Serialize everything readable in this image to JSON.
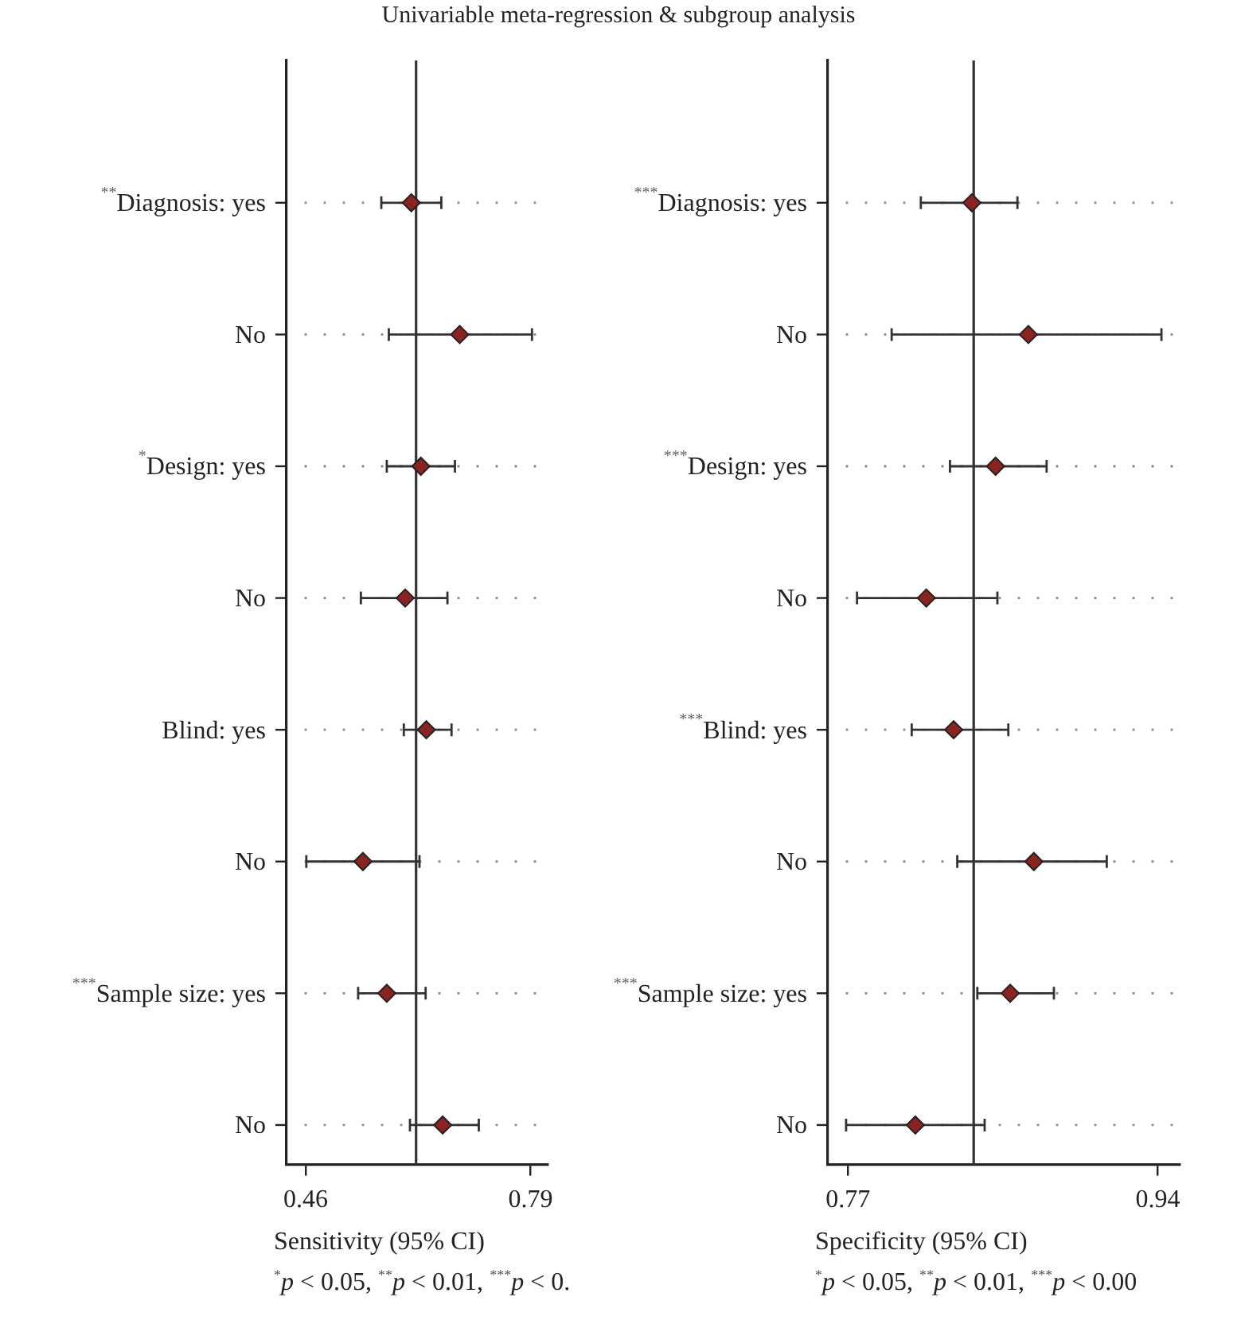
{
  "chart_data": [
    {
      "type": "scatter",
      "title": "Univariable meta-regression & subgroup analysis",
      "xlabel": "Sensitivity (95% CI)",
      "annotations": [
        "$^{*}$p < 0.05, $^{**}$p < 0.01, $^{***}$p < 0."
      ],
      "orientation": "horizontal",
      "marker": "diamond",
      "grid": "y",
      "color": "#8b2323",
      "categories": [
        "$^{**}$Diagnosis: yes",
        "No",
        "$^{*}$Design: yes",
        "No",
        "Blind: yes",
        "No",
        "$^{***}$Sample size: yes",
        "No"
      ],
      "values": [
        0.615,
        0.686,
        0.629,
        0.606,
        0.637,
        0.544,
        0.579,
        0.661
      ],
      "errors": [
        [
          0.571,
          0.659
        ],
        [
          0.582,
          0.792
        ],
        [
          0.579,
          0.679
        ],
        [
          0.541,
          0.668
        ],
        [
          0.604,
          0.674
        ],
        [
          0.461,
          0.627
        ],
        [
          0.537,
          0.636
        ],
        [
          0.613,
          0.714
        ]
      ],
      "xlim": [
        0.432,
        0.815
      ],
      "xticks": [
        0.46,
        0.79
      ],
      "ref_lines": [
        {
          "axis": "x",
          "value": 0.622
        }
      ]
    },
    {
      "type": "scatter",
      "xlabel": "Specificity (95% CI)",
      "annotations": [
        "$^{*}$p < 0.05, $^{**}$p < 0.01, $^{***}$p < 0.00"
      ],
      "orientation": "horizontal",
      "marker": "diamond",
      "grid": "y",
      "color": "#8b2323",
      "categories": [
        "$^{***}$Diagnosis: yes",
        "No",
        "$^{***}$Design: yes",
        "No",
        "$^{***}$Blind: yes",
        "No",
        "$^{***}$Sample size: yes",
        "No"
      ],
      "values": [
        0.838,
        0.869,
        0.851,
        0.813,
        0.828,
        0.872,
        0.859,
        0.807
      ],
      "errors": [
        [
          0.81,
          0.863
        ],
        [
          0.794,
          0.942
        ],
        [
          0.826,
          0.879
        ],
        [
          0.775,
          0.852
        ],
        [
          0.805,
          0.858
        ],
        [
          0.83,
          0.912
        ],
        [
          0.841,
          0.883
        ],
        [
          0.769,
          0.845
        ]
      ],
      "xlim": [
        0.759,
        0.952
      ],
      "xticks": [
        0.77,
        0.94
      ],
      "ref_lines": [
        {
          "axis": "x",
          "value": 0.839
        }
      ]
    }
  ]
}
